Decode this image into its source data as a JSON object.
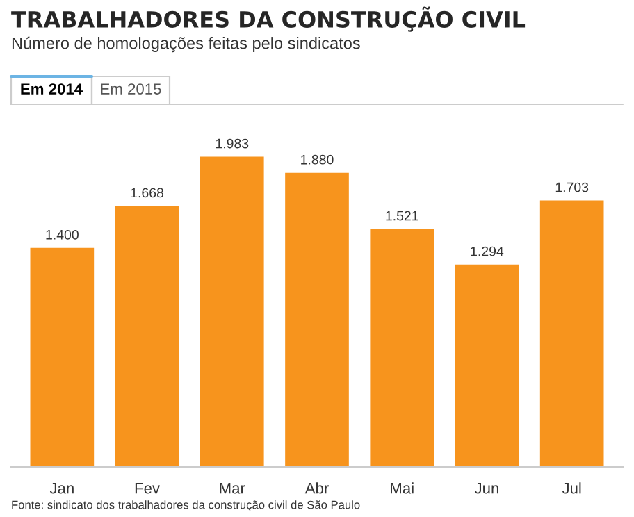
{
  "chart_data": {
    "type": "bar",
    "title": "TRABALHADORES DA CONSTRUÇÃO CIVIL",
    "subtitle": "Número de homologações feitas pelo sindicatos",
    "categories": [
      "Jan",
      "Fev",
      "Mar",
      "Abr",
      "Mai",
      "Jun",
      "Jul"
    ],
    "values": [
      1400,
      1668,
      1983,
      1880,
      1521,
      1294,
      1703
    ],
    "value_labels": [
      "1.400",
      "1.668",
      "1.983",
      "1.880",
      "1.521",
      "1.294",
      "1.703"
    ],
    "color": "#f7941d",
    "annotations": [
      "Em 2014",
      "Em 2015",
      "Fonte: sindicato dos trabalhadores da construção civil de São Paulo"
    ],
    "grid": false,
    "legend": false
  }
}
